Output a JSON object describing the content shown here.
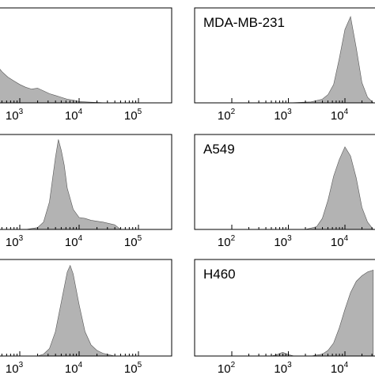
{
  "chart_data": {
    "type": "area",
    "x_scale": "log",
    "xlim": [
      100,
      100000
    ],
    "ylim": [
      0,
      100
    ],
    "grid": false,
    "tick_base": "10",
    "x_ticks": [
      {
        "value": 100,
        "exponent": "2"
      },
      {
        "value": 1000,
        "exponent": "3"
      },
      {
        "value": 10000,
        "exponent": "4"
      },
      {
        "value": 100000,
        "exponent": "5"
      }
    ],
    "panels": [
      {
        "label": "",
        "show_tick_values": [
          1000,
          10000,
          100000
        ],
        "x": [
          100,
          158,
          200,
          251,
          316,
          398,
          501,
          631,
          794,
          1000,
          1259,
          1585,
          1995,
          2512,
          3162,
          3981,
          5012,
          6310,
          7943,
          10000,
          15849,
          25119,
          39811,
          100000
        ],
        "y": [
          100,
          98,
          90,
          72,
          54,
          42,
          34,
          28,
          24,
          20,
          17,
          15,
          16,
          13,
          10,
          8,
          6,
          4,
          3,
          1.5,
          0.7,
          0.2,
          0,
          0
        ]
      },
      {
        "label": "MDA-MB-231",
        "show_tick_values": [
          100,
          1000,
          10000
        ],
        "x": [
          100,
          1000,
          2512,
          3981,
          5012,
          6310,
          7943,
          10000,
          12589,
          15849,
          19953,
          25119,
          31623
        ],
        "y": [
          0,
          0,
          1,
          4,
          9,
          20,
          48,
          80,
          94,
          60,
          22,
          6,
          0
        ]
      },
      {
        "label": "",
        "show_tick_values": [
          1000,
          10000,
          100000
        ],
        "x": [
          100,
          1259,
          1995,
          2512,
          3162,
          3981,
          4467,
          5012,
          5623,
          6310,
          7943,
          10000,
          12589,
          15849,
          25119,
          39811,
          50119,
          100000
        ],
        "y": [
          0,
          0,
          2,
          8,
          30,
          78,
          98,
          86,
          70,
          45,
          22,
          13,
          12,
          10,
          8,
          5,
          0,
          0
        ]
      },
      {
        "label": "A549",
        "show_tick_values": [
          100,
          1000,
          10000
        ],
        "x": [
          100,
          1995,
          3162,
          3981,
          5012,
          6310,
          7943,
          10000,
          12589,
          15849,
          19953,
          25119,
          31623
        ],
        "y": [
          0,
          0,
          3,
          12,
          32,
          58,
          76,
          90,
          80,
          56,
          24,
          8,
          0
        ]
      },
      {
        "label": "",
        "show_tick_values": [
          1000,
          10000,
          100000
        ],
        "x": [
          100,
          1995,
          2512,
          3162,
          3981,
          5012,
          6310,
          7079,
          7943,
          10000,
          12589,
          15849,
          19953,
          25119,
          39811,
          100000
        ],
        "y": [
          0,
          0,
          2,
          8,
          26,
          58,
          90,
          97,
          88,
          55,
          26,
          12,
          6,
          3,
          0,
          0
        ]
      },
      {
        "label": "H460",
        "show_tick_values": [
          100,
          1000,
          10000
        ],
        "x": [
          100,
          501,
          631,
          794,
          1000,
          1259,
          2512,
          3981,
          5012,
          6310,
          7943,
          10000,
          12589,
          15849,
          19953,
          25119,
          31623
        ],
        "y": [
          0,
          0,
          1.5,
          4,
          1.5,
          0,
          0,
          2,
          6,
          14,
          30,
          50,
          68,
          80,
          86,
          90,
          92
        ]
      }
    ]
  }
}
